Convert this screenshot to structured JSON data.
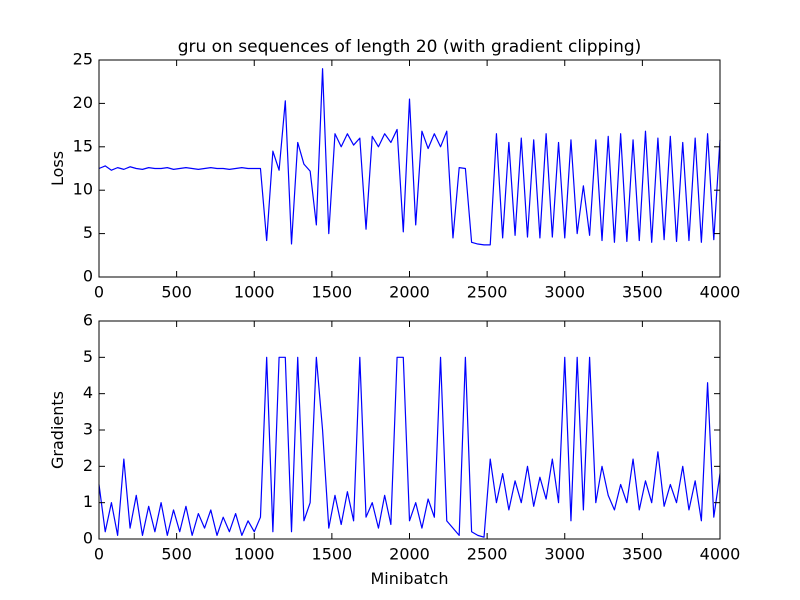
{
  "chart_data": [
    {
      "type": "line",
      "title": "gru on sequences of length 20 (with gradient clipping)",
      "y_label": "Loss",
      "x": [
        0,
        40,
        80,
        120,
        160,
        200,
        240,
        280,
        320,
        360,
        400,
        440,
        480,
        520,
        560,
        600,
        640,
        680,
        720,
        760,
        800,
        840,
        880,
        920,
        960,
        1000,
        1040,
        1080,
        1120,
        1160,
        1200,
        1240,
        1280,
        1320,
        1360,
        1400,
        1440,
        1480,
        1520,
        1560,
        1600,
        1640,
        1680,
        1720,
        1760,
        1800,
        1840,
        1880,
        1920,
        1960,
        2000,
        2040,
        2080,
        2120,
        2160,
        2200,
        2240,
        2280,
        2320,
        2360,
        2400,
        2440,
        2480,
        2520,
        2560,
        2600,
        2640,
        2680,
        2720,
        2760,
        2800,
        2840,
        2880,
        2920,
        2960,
        3000,
        3040,
        3080,
        3120,
        3160,
        3200,
        3240,
        3280,
        3320,
        3360,
        3400,
        3440,
        3480,
        3520,
        3560,
        3600,
        3640,
        3680,
        3720,
        3760,
        3800,
        3840,
        3880,
        3920,
        3960,
        4000
      ],
      "values": [
        12.5,
        12.8,
        12.3,
        12.6,
        12.4,
        12.7,
        12.5,
        12.4,
        12.6,
        12.5,
        12.5,
        12.6,
        12.4,
        12.5,
        12.6,
        12.5,
        12.4,
        12.5,
        12.6,
        12.5,
        12.5,
        12.4,
        12.5,
        12.6,
        12.5,
        12.5,
        12.5,
        4.2,
        14.5,
        12.3,
        20.3,
        3.8,
        15.5,
        13.0,
        12.2,
        6.0,
        24.0,
        5.0,
        16.5,
        15.0,
        16.5,
        15.2,
        16.0,
        5.5,
        16.2,
        15.0,
        16.5,
        15.5,
        17.0,
        5.2,
        20.5,
        6.0,
        16.8,
        14.8,
        16.5,
        15.0,
        16.8,
        4.5,
        12.6,
        12.5,
        4.0,
        3.8,
        3.7,
        3.7,
        16.5,
        4.5,
        15.5,
        4.8,
        16.0,
        4.6,
        15.8,
        4.5,
        16.5,
        4.6,
        15.5,
        4.5,
        15.8,
        5.0,
        10.5,
        4.8,
        15.8,
        4.2,
        16.2,
        4.0,
        16.5,
        4.1,
        15.8,
        4.2,
        16.8,
        4.0,
        16.0,
        4.3,
        16.2,
        4.1,
        15.5,
        4.2,
        16.0,
        4.0,
        16.5,
        4.3,
        15.8
      ],
      "color": "#0000ff",
      "xlim": [
        0,
        4000
      ],
      "ylim": [
        0,
        25
      ],
      "xticks": [
        0,
        500,
        1000,
        1500,
        2000,
        2500,
        3000,
        3500,
        4000
      ],
      "yticks": [
        0,
        5,
        10,
        15,
        20,
        25
      ]
    },
    {
      "type": "line",
      "y_label": "Gradients",
      "x_label": "Minibatch",
      "x": [
        0,
        40,
        80,
        120,
        160,
        200,
        240,
        280,
        320,
        360,
        400,
        440,
        480,
        520,
        560,
        600,
        640,
        680,
        720,
        760,
        800,
        840,
        880,
        920,
        960,
        1000,
        1040,
        1080,
        1120,
        1160,
        1200,
        1240,
        1280,
        1320,
        1360,
        1400,
        1440,
        1480,
        1520,
        1560,
        1600,
        1640,
        1680,
        1720,
        1760,
        1800,
        1840,
        1880,
        1920,
        1960,
        2000,
        2040,
        2080,
        2120,
        2160,
        2200,
        2240,
        2280,
        2320,
        2360,
        2400,
        2440,
        2480,
        2520,
        2560,
        2600,
        2640,
        2680,
        2720,
        2760,
        2800,
        2840,
        2880,
        2920,
        2960,
        3000,
        3040,
        3080,
        3120,
        3160,
        3200,
        3240,
        3280,
        3320,
        3360,
        3400,
        3440,
        3480,
        3520,
        3560,
        3600,
        3640,
        3680,
        3720,
        3760,
        3800,
        3840,
        3880,
        3920,
        3960,
        4000
      ],
      "values": [
        1.5,
        0.2,
        1.0,
        0.1,
        2.2,
        0.3,
        1.2,
        0.1,
        0.9,
        0.2,
        1.0,
        0.1,
        0.8,
        0.2,
        0.9,
        0.1,
        0.7,
        0.3,
        0.8,
        0.1,
        0.6,
        0.2,
        0.7,
        0.1,
        0.5,
        0.2,
        0.6,
        5.0,
        0.2,
        5.0,
        5.0,
        0.2,
        5.0,
        0.5,
        1.0,
        5.0,
        3.0,
        0.3,
        1.2,
        0.4,
        1.3,
        0.5,
        5.0,
        0.6,
        1.0,
        0.3,
        1.2,
        0.4,
        5.0,
        5.0,
        0.5,
        1.0,
        0.3,
        1.1,
        0.6,
        5.0,
        0.5,
        0.3,
        0.1,
        5.0,
        0.2,
        0.1,
        0.05,
        2.2,
        1.0,
        1.8,
        0.8,
        1.6,
        1.0,
        2.0,
        0.9,
        1.7,
        1.1,
        2.2,
        1.0,
        5.0,
        0.5,
        5.0,
        0.8,
        5.0,
        1.0,
        2.0,
        1.2,
        0.8,
        1.5,
        1.0,
        2.2,
        0.8,
        1.6,
        1.0,
        2.4,
        0.9,
        1.5,
        1.0,
        2.0,
        0.8,
        1.6,
        0.5,
        4.3,
        0.6,
        1.8
      ],
      "color": "#0000ff",
      "xlim": [
        0,
        4000
      ],
      "ylim": [
        0,
        6
      ],
      "xticks": [
        0,
        500,
        1000,
        1500,
        2000,
        2500,
        3000,
        3500,
        4000
      ],
      "yticks": [
        0,
        1,
        2,
        3,
        4,
        5,
        6
      ]
    }
  ]
}
